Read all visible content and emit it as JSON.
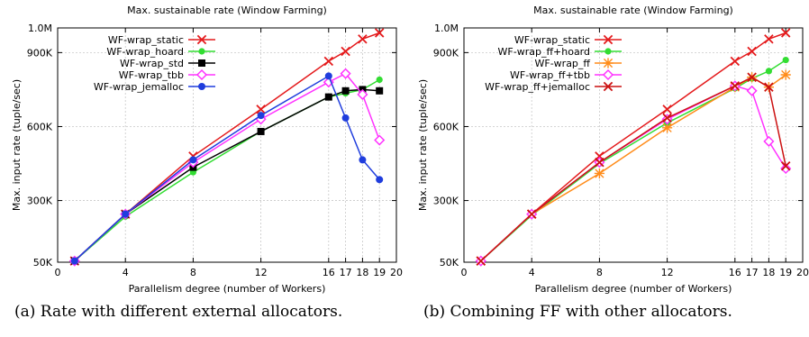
{
  "figure": {
    "captions": [
      "(a) Rate with different external allocators.",
      "(b) Combining FF with other allocators."
    ]
  },
  "chart_data": [
    {
      "type": "line",
      "title": "Max. sustainable rate (Window Farming)",
      "xlabel": "Parallelism degree (number of Workers)",
      "ylabel": "Max. input rate (tuple/sec)",
      "xlim": [
        0,
        20
      ],
      "ylim": [
        50000,
        1000000
      ],
      "xticks": [
        0,
        4,
        8,
        12,
        16,
        17,
        18,
        19,
        20
      ],
      "yticks": [
        50000,
        300000,
        600000,
        900000,
        1000000
      ],
      "ytick_labels": [
        "50K",
        "300K",
        "600K",
        "900K",
        "1.0M"
      ],
      "grid": true,
      "legend_position": "top-left",
      "series": [
        {
          "name": "WF-wrap_static",
          "color": "#e41a1c",
          "marker": "x",
          "x": [
            1,
            4,
            8,
            12,
            16,
            17,
            18,
            19
          ],
          "y": [
            55000,
            245000,
            480000,
            670000,
            865000,
            905000,
            955000,
            980000
          ]
        },
        {
          "name": "WF-wrap_hoard",
          "color": "#33dd33",
          "marker": "circle",
          "x": [
            1,
            4,
            8,
            12,
            16,
            17,
            18,
            19
          ],
          "y": [
            55000,
            235000,
            415000,
            580000,
            720000,
            735000,
            750000,
            790000
          ]
        },
        {
          "name": "WF-wrap_std",
          "color": "#000000",
          "marker": "square",
          "x": [
            1,
            4,
            8,
            12,
            16,
            17,
            18,
            19
          ],
          "y": [
            55000,
            245000,
            435000,
            580000,
            720000,
            745000,
            750000,
            745000
          ]
        },
        {
          "name": "WF-wrap_tbb",
          "color": "#ff33ff",
          "marker": "diamond",
          "x": [
            1,
            4,
            8,
            12,
            16,
            17,
            18,
            19
          ],
          "y": [
            55000,
            245000,
            455000,
            630000,
            780000,
            815000,
            730000,
            545000
          ]
        },
        {
          "name": "WF-wrap_jemalloc",
          "color": "#1f3ddd",
          "marker": "dot",
          "x": [
            1,
            4,
            8,
            12,
            16,
            17,
            18,
            19
          ],
          "y": [
            55000,
            245000,
            465000,
            645000,
            805000,
            635000,
            465000,
            385000
          ]
        }
      ]
    },
    {
      "type": "line",
      "title": "Max. sustainable rate (Window Farming)",
      "xlabel": "Parallelism degree (number of Workers)",
      "ylabel": "Max. input rate (tuple/sec)",
      "xlim": [
        0,
        20
      ],
      "ylim": [
        50000,
        1000000
      ],
      "xticks": [
        0,
        4,
        8,
        12,
        16,
        17,
        18,
        19,
        20
      ],
      "yticks": [
        50000,
        300000,
        600000,
        900000,
        1000000
      ],
      "ytick_labels": [
        "50K",
        "300K",
        "600K",
        "900K",
        "1.0M"
      ],
      "grid": true,
      "legend_position": "top-left",
      "series": [
        {
          "name": "WF-wrap_static",
          "color": "#e41a1c",
          "marker": "x",
          "x": [
            1,
            4,
            8,
            12,
            16,
            17,
            18,
            19
          ],
          "y": [
            55000,
            245000,
            480000,
            670000,
            865000,
            905000,
            955000,
            980000
          ]
        },
        {
          "name": "WF-wrap_ff+hoard",
          "color": "#33dd33",
          "marker": "circle",
          "x": [
            1,
            4,
            8,
            12,
            16,
            17,
            18,
            19
          ],
          "y": [
            55000,
            240000,
            450000,
            615000,
            755000,
            795000,
            825000,
            870000
          ]
        },
        {
          "name": "WF-wrap_ff",
          "color": "#ff8c1a",
          "marker": "star",
          "x": [
            1,
            4,
            8,
            12,
            16,
            17,
            18,
            19
          ],
          "y": [
            55000,
            245000,
            410000,
            595000,
            760000,
            800000,
            760000,
            810000
          ]
        },
        {
          "name": "WF-wrap_ff+tbb",
          "color": "#ff33ff",
          "marker": "diamond",
          "x": [
            1,
            4,
            8,
            12,
            16,
            17,
            18,
            19
          ],
          "y": [
            55000,
            245000,
            455000,
            630000,
            765000,
            745000,
            540000,
            430000
          ]
        },
        {
          "name": "WF-wrap_ff+jemalloc",
          "color": "#cc1111",
          "marker": "x",
          "x": [
            1,
            4,
            8,
            12,
            16,
            17,
            18,
            19
          ],
          "y": [
            55000,
            245000,
            455000,
            635000,
            765000,
            800000,
            760000,
            440000
          ]
        }
      ]
    }
  ]
}
